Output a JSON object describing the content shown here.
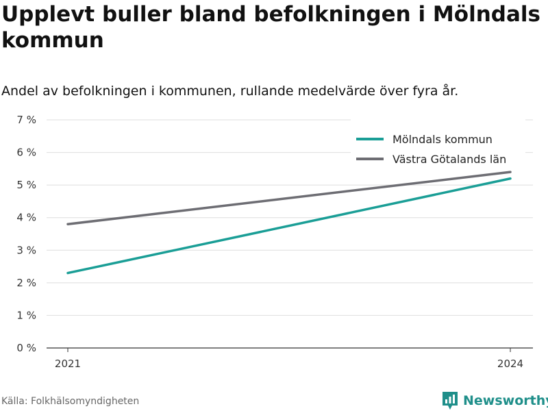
{
  "chart_data": {
    "type": "line",
    "title": "Upplevt buller bland befolkningen i Mölndals kommun",
    "subtitle": "Andel av befolkningen i kommunen, rullande medelvärde över fyra år.",
    "xlabel": "",
    "ylabel": "",
    "x": [
      "2021",
      "2024"
    ],
    "ylim": [
      0,
      7
    ],
    "yticks": [
      "0 %",
      "1 %",
      "2 %",
      "3 %",
      "4 %",
      "5 %",
      "6 %",
      "7 %"
    ],
    "grid": true,
    "legend_position": "top-right",
    "series": [
      {
        "name": "Mölndals kommun",
        "values": [
          2.3,
          5.2
        ],
        "color": "#1a9e96"
      },
      {
        "name": "Västra Götalands län",
        "values": [
          3.8,
          5.4
        ],
        "color": "#6d6d73"
      }
    ]
  },
  "source": "Källa: Folkhälsomyndigheten",
  "brand": {
    "name": "Newsworthy",
    "icon": "newsworthy-logo-icon",
    "color": "#1f8f8a"
  }
}
